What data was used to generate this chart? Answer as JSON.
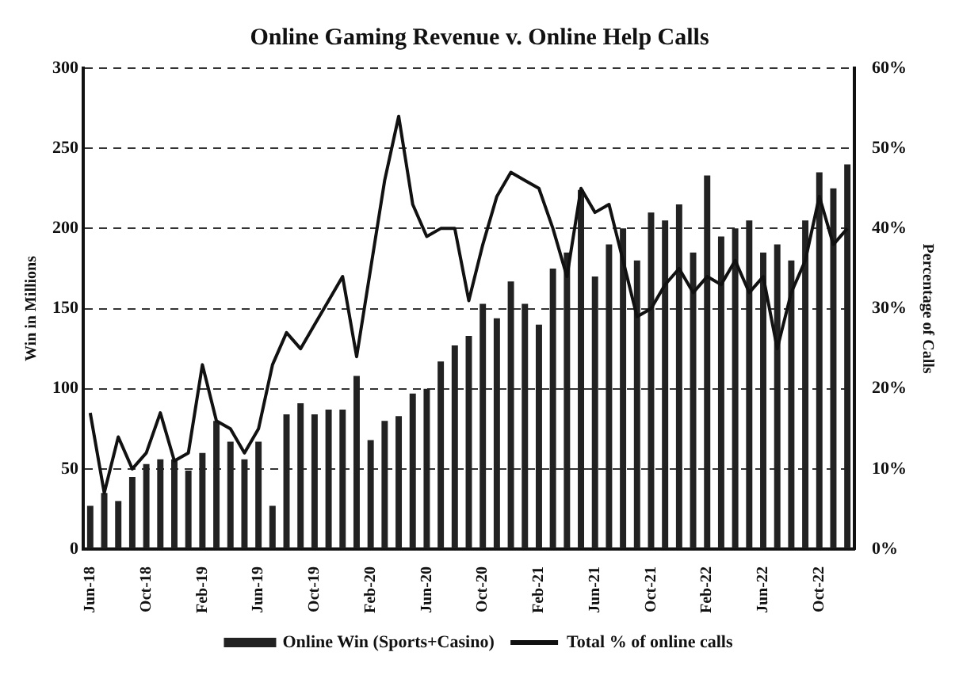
{
  "chart_data": {
    "type": "bar",
    "title": "Online Gaming Revenue v. Online Help Calls",
    "ylabel": "Win in Millions",
    "y2label": "Percentage of Calls",
    "categories": [
      "Jun-18",
      null,
      null,
      null,
      "Oct-18",
      null,
      null,
      null,
      "Feb-19",
      null,
      null,
      null,
      "Jun-19",
      null,
      null,
      null,
      "Oct-19",
      null,
      null,
      null,
      "Feb-20",
      null,
      null,
      null,
      "Jun-20",
      null,
      null,
      null,
      "Oct-20",
      null,
      null,
      null,
      "Feb-21",
      null,
      null,
      null,
      "Jun-21",
      null,
      null,
      null,
      "Oct-21",
      null,
      null,
      null,
      "Feb-22",
      null,
      null,
      null,
      "Jun-22",
      null,
      null,
      null,
      "Oct-22",
      null,
      null
    ],
    "series": [
      {
        "name": "Online Win (Sports+Casino)",
        "color": "#222222",
        "values": [
          27,
          35,
          30,
          45,
          53,
          56,
          56,
          49,
          60,
          80,
          67,
          56,
          67,
          27,
          84,
          91,
          84,
          87,
          87,
          108,
          68,
          80,
          83,
          97,
          100,
          117,
          127,
          133,
          153,
          144,
          167,
          153,
          140,
          175,
          185,
          224,
          170,
          190,
          200,
          180,
          210,
          205,
          215,
          185,
          233,
          195,
          200,
          205,
          185,
          190,
          180,
          205,
          235,
          225,
          240
        ]
      },
      {
        "name": "Total % of online calls",
        "type": "line",
        "axis": "y2",
        "color": "#111111",
        "values": [
          17,
          7,
          14,
          10,
          12,
          17,
          11,
          12,
          23,
          16,
          15,
          12,
          15,
          23,
          27,
          25,
          28,
          31,
          34,
          24,
          35,
          46,
          54,
          43,
          39,
          40,
          40,
          31,
          38,
          44,
          47,
          46,
          45,
          40,
          34,
          45,
          42,
          43,
          36,
          29,
          30,
          33,
          35,
          32,
          34,
          33,
          36,
          32,
          34,
          25,
          32,
          36,
          44,
          38,
          40
        ]
      }
    ],
    "ylim": [
      0,
      300
    ],
    "yticks": [
      0,
      50,
      100,
      150,
      200,
      250,
      300
    ],
    "y2lim": [
      0,
      60
    ],
    "y2ticks": [
      {
        "value": 0,
        "label": "0%"
      },
      {
        "value": 10,
        "label": "10%"
      },
      {
        "value": 20,
        "label": "20%"
      },
      {
        "value": 30,
        "label": "30%"
      },
      {
        "value": 40,
        "label": "40%"
      },
      {
        "value": 50,
        "label": "50%"
      },
      {
        "value": 60,
        "label": "60%"
      }
    ],
    "grid": "y",
    "legend": "bottom",
    "marker": "none",
    "line_style": "solid"
  }
}
